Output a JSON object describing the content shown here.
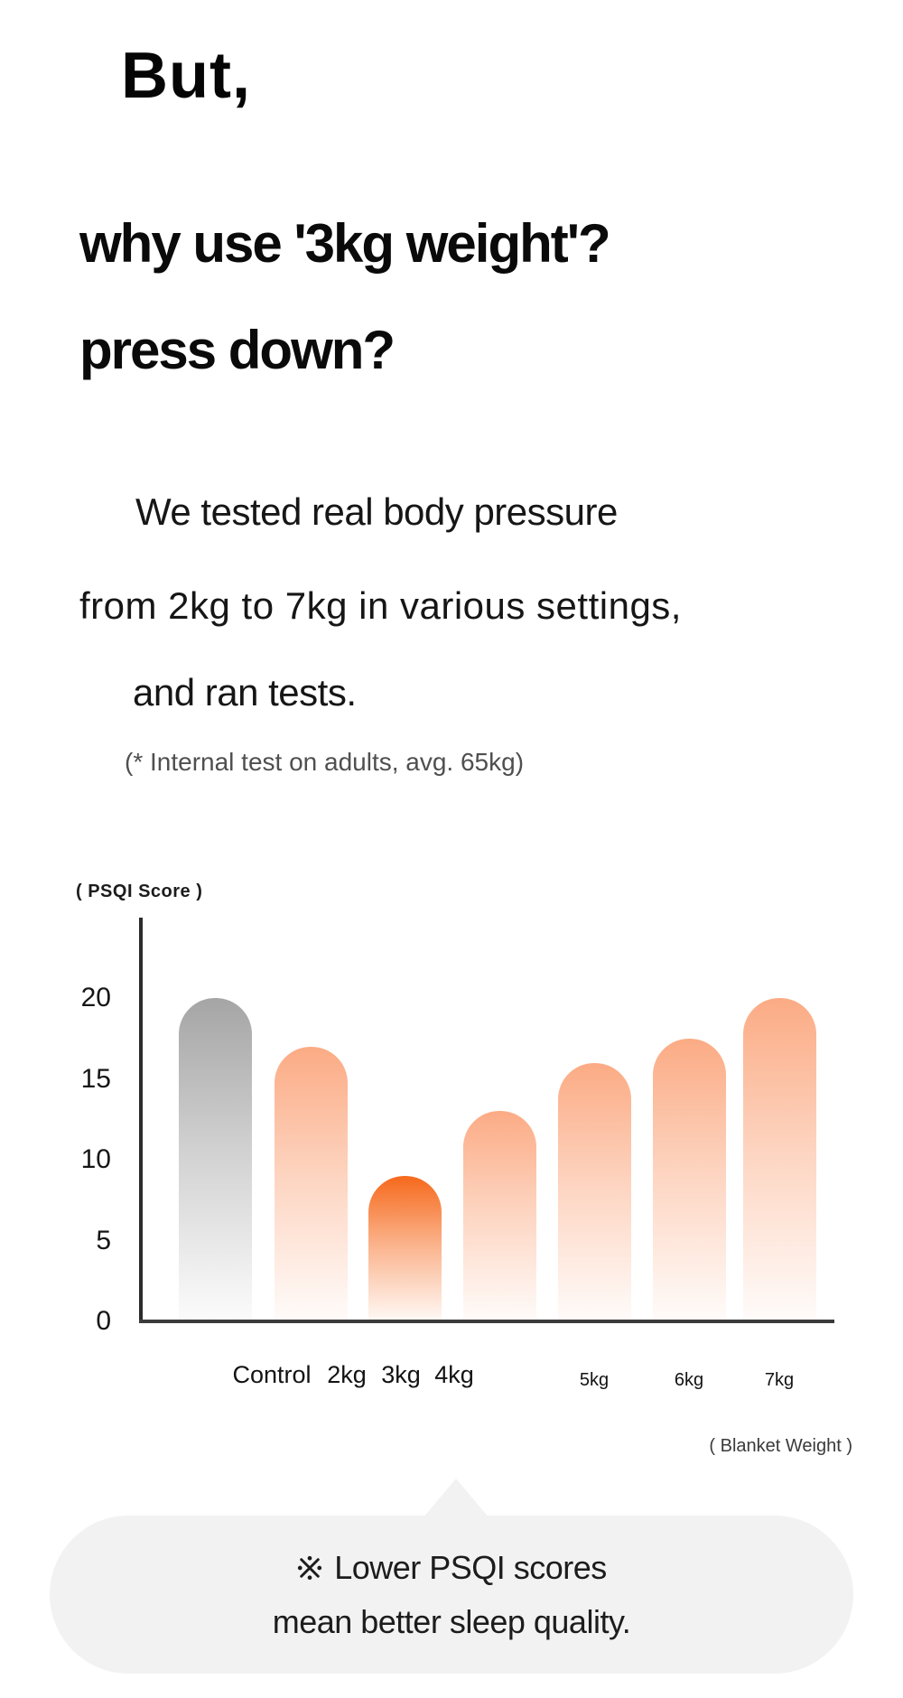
{
  "page": {
    "background": "#ffffff"
  },
  "headline": {
    "intro": "But,",
    "question_line1": "why use '3kg weight'?",
    "question_line2": "press down?"
  },
  "body": {
    "line1": "We tested real body pressure",
    "line2": "from 2kg to 7kg in various settings,",
    "line3": "and ran tests.",
    "footnote": "(* Internal test on adults, avg. 65kg)"
  },
  "chart_data": {
    "type": "bar",
    "title": "",
    "ylabel": "( PSQI Score )",
    "xlabel": "( Blanket Weight )",
    "categories": [
      "Control",
      "2kg",
      "3kg",
      "4kg",
      "5kg",
      "6kg",
      "7kg"
    ],
    "values": [
      20,
      17,
      9,
      13,
      16,
      17.5,
      20
    ],
    "yticks": [
      0,
      5,
      10,
      15,
      20
    ],
    "ylim": [
      0,
      22.5
    ],
    "grid": false,
    "legend": "none",
    "bar_colors": [
      "#a5a5a5",
      "#fbab84",
      "#f6691c",
      "#fbab84",
      "#fbab84",
      "#fbab84",
      "#fbab84"
    ],
    "highlight_category": "3kg",
    "control_category": "Control",
    "bar_style": "rounded pill tops, gradient fading to white at baseline"
  },
  "callout": {
    "symbol": "※",
    "line1": "Lower PSQI scores",
    "line2": "mean better sleep quality.",
    "background": "#f2f2f3"
  },
  "colors": {
    "text_primary": "#0d0d0d",
    "text_secondary": "#4f4f4f",
    "axis": "#333333",
    "accent_orange": "#f6691c",
    "bar_peach": "#fbab84",
    "bar_gray": "#a5a5a5"
  }
}
